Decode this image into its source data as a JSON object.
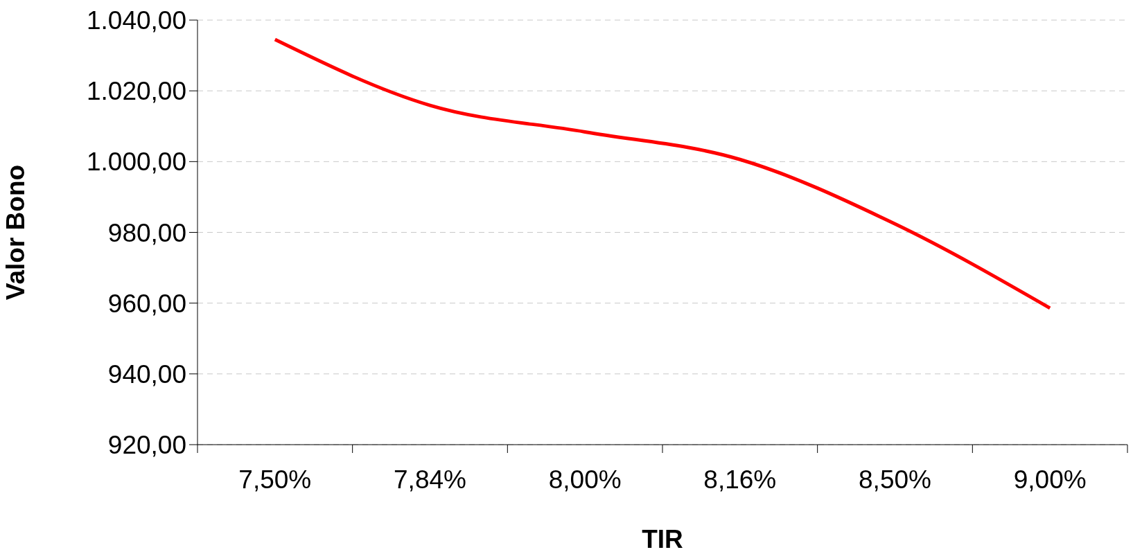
{
  "chart_data": {
    "type": "line",
    "xlabel": "TIR",
    "ylabel": "Valor Bono",
    "categories": [
      "7,50%",
      "7,84%",
      "8,00%",
      "8,16%",
      "8,50%",
      "9,00%"
    ],
    "series": [
      {
        "color": "#ff0000",
        "values": [
          1034.5,
          1015.9,
          1008.4,
          1000.6,
          982.4,
          958.6
        ]
      }
    ],
    "ylim": [
      920,
      1040
    ],
    "yticks": [
      {
        "value": 920,
        "label": "920,00"
      },
      {
        "value": 940,
        "label": "940,00"
      },
      {
        "value": 960,
        "label": "960,00"
      },
      {
        "value": 980,
        "label": "980,00"
      },
      {
        "value": 1000,
        "label": "1.000,00"
      },
      {
        "value": 1020,
        "label": "1.020,00"
      },
      {
        "value": 1040,
        "label": "1.040,00"
      }
    ],
    "grid": "y",
    "marker": "none",
    "line_style": "solid",
    "legend": false
  }
}
